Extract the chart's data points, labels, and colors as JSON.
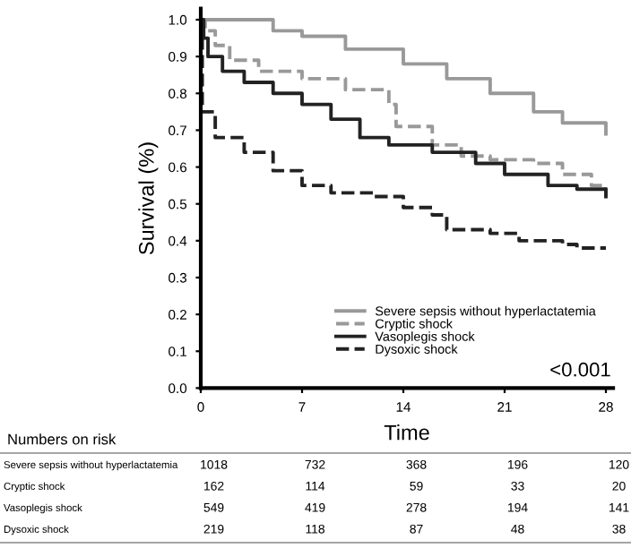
{
  "chart_data": {
    "type": "step",
    "xlabel": "Time",
    "ylabel": "Survival (%)",
    "xlim": [
      0,
      28.5
    ],
    "xticks": [
      0,
      7,
      14,
      21,
      28
    ],
    "ylim": [
      0,
      1.03
    ],
    "yticks": [
      {
        "value": 0,
        "label": "0.0"
      },
      {
        "value": 0.1,
        "label": "0.1"
      },
      {
        "value": 0.2,
        "label": "0.2"
      },
      {
        "value": 0.3,
        "label": "0.3"
      },
      {
        "value": 0.4,
        "label": "0.4"
      },
      {
        "value": 0.5,
        "label": "0.5"
      },
      {
        "value": 0.6,
        "label": "0.6"
      },
      {
        "value": 0.7,
        "label": "0.7"
      },
      {
        "value": 0.8,
        "label": "0.8"
      },
      {
        "value": 0.9,
        "label": "0.9"
      },
      {
        "value": 1.0,
        "label": "1.0"
      }
    ],
    "grid": false,
    "legend": "bottom right",
    "marker": "none",
    "series": [
      {
        "name": "Severe sepsis without hyperlactatemia",
        "color": "#999999",
        "line_style": "solid",
        "x": [
          0,
          5,
          7,
          10,
          14,
          17,
          20,
          23,
          25,
          28
        ],
        "values": [
          1.0,
          0.97,
          0.955,
          0.92,
          0.88,
          0.84,
          0.8,
          0.75,
          0.72,
          0.69
        ]
      },
      {
        "name": "Cryptic shock",
        "color": "#999999",
        "line_style": "dashed",
        "x": [
          0,
          0.3,
          1,
          2,
          4,
          7,
          10,
          13,
          13.5,
          16,
          18,
          20,
          23,
          25,
          27,
          28
        ],
        "values": [
          1.0,
          0.97,
          0.93,
          0.89,
          0.86,
          0.84,
          0.81,
          0.77,
          0.71,
          0.66,
          0.63,
          0.62,
          0.61,
          0.58,
          0.55,
          0.52
        ]
      },
      {
        "name": "Vasoplegis shock",
        "color": "#222222",
        "line_style": "solid",
        "x": [
          0,
          0.2,
          0.5,
          1.5,
          3,
          5,
          7,
          9,
          11,
          13,
          16,
          19,
          21,
          24,
          26,
          28
        ],
        "values": [
          1.0,
          0.95,
          0.9,
          0.86,
          0.83,
          0.8,
          0.77,
          0.73,
          0.68,
          0.66,
          0.64,
          0.61,
          0.58,
          0.55,
          0.54,
          0.52
        ]
      },
      {
        "name": "Dysoxic shock",
        "color": "#222222",
        "line_style": "dashed",
        "x": [
          0,
          0.1,
          1,
          3,
          5,
          7,
          9,
          12,
          14,
          16,
          17,
          20,
          22,
          25,
          26,
          28
        ],
        "values": [
          1.0,
          0.75,
          0.68,
          0.64,
          0.59,
          0.55,
          0.53,
          0.52,
          0.49,
          0.47,
          0.43,
          0.42,
          0.4,
          0.39,
          0.38,
          0.38
        ]
      }
    ],
    "annotations": [
      "<0.001",
      "Numbers on risk",
      "Severe sepsis without hyperlactatemia",
      "1018",
      "732",
      "368",
      "196",
      "120",
      "Cryptic shock",
      "162",
      "114",
      "59",
      "33",
      "20",
      "Vasoplegis shock",
      "549",
      "419",
      "278",
      "194",
      "141",
      "Dysoxic shock",
      "219",
      "118",
      "87",
      "48",
      "38"
    ]
  }
}
